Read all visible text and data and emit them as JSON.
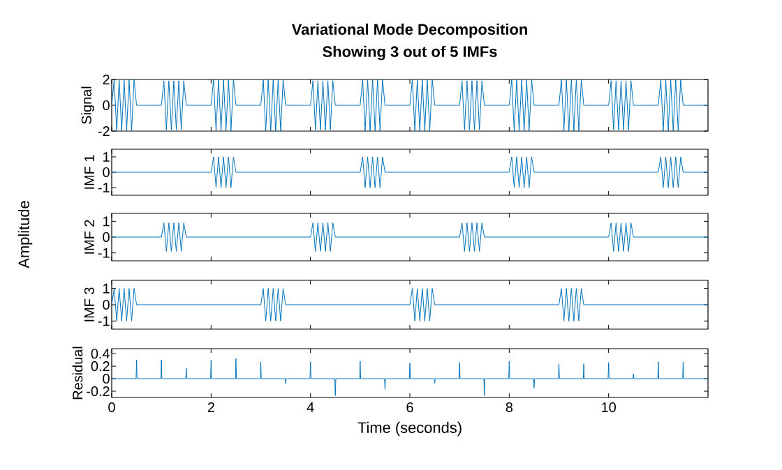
{
  "chart_data": [
    {
      "type": "line",
      "title": "Variational Mode Decomposition",
      "subtitle": "Showing 3 out of 5 IMFs",
      "ylabel": "Signal",
      "xlim": [
        0,
        12
      ],
      "xticks": [
        0,
        2,
        4,
        6,
        8,
        10
      ],
      "ylim": [
        -2,
        2
      ],
      "yticks": [
        -2,
        0,
        2
      ],
      "tick_labels": "y",
      "series": [
        {
          "color": "#0072bd",
          "x": [
            0,
            0.05,
            0.1,
            0.15,
            0.2,
            0.25,
            0.3,
            0.35,
            0.4,
            0.45,
            0.5,
            1,
            1.05,
            1.1,
            1.15,
            1.2,
            1.25,
            1.3,
            1.35,
            1.4,
            1.45,
            1.5,
            2,
            2.05,
            2.1,
            2.15,
            2.2,
            2.25,
            2.3,
            2.35,
            2.4,
            2.45,
            2.5,
            3,
            3.05,
            3.1,
            3.15,
            3.2,
            3.25,
            3.3,
            3.35,
            3.4,
            3.45,
            3.5,
            4,
            4.05,
            4.1,
            4.15,
            4.2,
            4.25,
            4.3,
            4.35,
            4.4,
            4.45,
            4.5,
            5,
            5.05,
            5.1,
            5.15,
            5.2,
            5.25,
            5.3,
            5.35,
            5.4,
            5.45,
            5.5,
            6,
            6.05,
            6.1,
            6.15,
            6.2,
            6.25,
            6.3,
            6.35,
            6.4,
            6.45,
            6.5,
            7,
            7.05,
            7.1,
            7.15,
            7.2,
            7.25,
            7.3,
            7.35,
            7.4,
            7.45,
            7.5,
            8,
            8.05,
            8.1,
            8.15,
            8.2,
            8.25,
            8.3,
            8.35,
            8.4,
            8.45,
            8.5,
            9,
            9.05,
            9.1,
            9.15,
            9.2,
            9.25,
            9.3,
            9.35,
            9.4,
            9.45,
            9.5,
            10,
            10.05,
            10.1,
            10.15,
            10.2,
            10.25,
            10.3,
            10.35,
            10.4,
            10.45,
            10.5,
            11,
            11.05,
            11.1,
            11.15,
            11.2,
            11.25,
            11.3,
            11.35,
            11.4,
            11.45,
            11.5,
            12
          ],
          "values": [
            0,
            2,
            -2,
            2,
            -2,
            2,
            -2,
            2,
            -2,
            2,
            0,
            0,
            1.9,
            -1.9,
            1.9,
            -1.9,
            1.9,
            -1.9,
            1.9,
            -1.9,
            1.9,
            0,
            0,
            2,
            -2,
            2,
            -2,
            2,
            -2,
            2,
            -2,
            2,
            0,
            0,
            2,
            -2,
            2,
            -2,
            2,
            -2,
            2,
            -2,
            2,
            0,
            0,
            1.9,
            -1.9,
            1.9,
            -1.9,
            1.9,
            -1.9,
            1.9,
            -1.9,
            1.9,
            0,
            0,
            2,
            -2,
            2,
            -2,
            2,
            -2,
            2,
            -2,
            2,
            0,
            0,
            2,
            -2,
            2,
            -2,
            2,
            -2,
            2,
            -2,
            2,
            0,
            0,
            1.9,
            -1.9,
            1.9,
            -1.9,
            1.9,
            -1.9,
            1.9,
            -1.9,
            1.9,
            0,
            0,
            2,
            -2,
            2,
            -2,
            2,
            -2,
            2,
            -2,
            2,
            0,
            0,
            2,
            -2,
            2,
            -2,
            2,
            -2,
            2,
            -2,
            2,
            0,
            0,
            1.9,
            -1.9,
            1.9,
            -1.9,
            1.9,
            -1.9,
            1.9,
            -1.9,
            1.9,
            0,
            0,
            2,
            -2,
            2,
            -2,
            2,
            -2,
            2,
            -2,
            2,
            0,
            0
          ]
        }
      ]
    },
    {
      "type": "line",
      "ylabel": "IMF 1",
      "xlim": [
        0,
        12
      ],
      "xticks": [
        0,
        2,
        4,
        6,
        8,
        10
      ],
      "ylim": [
        -1.5,
        1.5
      ],
      "yticks": [
        -1,
        0,
        1
      ],
      "tick_labels": "y",
      "series": [
        {
          "color": "#0072bd",
          "x": [
            0,
            2,
            2.05,
            2.1,
            2.15,
            2.2,
            2.25,
            2.3,
            2.35,
            2.4,
            2.45,
            2.5,
            5,
            5.05,
            5.1,
            5.15,
            5.2,
            5.25,
            5.3,
            5.35,
            5.4,
            5.45,
            5.5,
            8,
            8.05,
            8.1,
            8.15,
            8.2,
            8.25,
            8.3,
            8.35,
            8.4,
            8.45,
            8.5,
            11,
            11.05,
            11.1,
            11.15,
            11.2,
            11.25,
            11.3,
            11.35,
            11.4,
            11.45,
            11.5,
            12
          ],
          "values": [
            0,
            0,
            1,
            -1,
            1,
            -1,
            1,
            -1,
            1,
            -1,
            1,
            0,
            0,
            1,
            -1,
            1,
            -1,
            1,
            -1,
            1,
            -1,
            1,
            0,
            0,
            1,
            -1,
            1,
            -1,
            1,
            -1,
            1,
            -1,
            1,
            0,
            0,
            1,
            -1,
            1,
            -1,
            1,
            -1,
            1,
            -1,
            1,
            0,
            0
          ]
        }
      ]
    },
    {
      "type": "line",
      "ylabel": "IMF 2",
      "xlim": [
        0,
        12
      ],
      "xticks": [
        0,
        2,
        4,
        6,
        8,
        10
      ],
      "ylim": [
        -1.5,
        1.5
      ],
      "yticks": [
        -1,
        0,
        1
      ],
      "tick_labels": "y",
      "annotations": [
        "Amplitude"
      ],
      "series": [
        {
          "color": "#0072bd",
          "x": [
            0,
            1,
            1.05,
            1.1,
            1.15,
            1.2,
            1.25,
            1.3,
            1.35,
            1.4,
            1.45,
            1.5,
            4,
            4.05,
            4.1,
            4.15,
            4.2,
            4.25,
            4.3,
            4.35,
            4.4,
            4.45,
            4.5,
            7,
            7.05,
            7.1,
            7.15,
            7.2,
            7.25,
            7.3,
            7.35,
            7.4,
            7.45,
            7.5,
            10,
            10.05,
            10.1,
            10.15,
            10.2,
            10.25,
            10.3,
            10.35,
            10.4,
            10.45,
            10.5,
            12
          ],
          "values": [
            0,
            0,
            0.9,
            -0.9,
            0.9,
            -0.9,
            0.9,
            -0.9,
            0.9,
            -0.9,
            0.9,
            0,
            0,
            0.9,
            -0.9,
            0.9,
            -0.9,
            0.9,
            -0.9,
            0.9,
            -0.9,
            0.9,
            0,
            0,
            0.9,
            -0.9,
            0.9,
            -0.9,
            0.9,
            -0.9,
            0.9,
            -0.9,
            0.9,
            0,
            0,
            0.9,
            -0.9,
            0.9,
            -0.9,
            0.9,
            -0.9,
            0.9,
            -0.9,
            0.9,
            0,
            0
          ]
        }
      ]
    },
    {
      "type": "line",
      "ylabel": "IMF 3",
      "xlim": [
        0,
        12
      ],
      "xticks": [
        0,
        2,
        4,
        6,
        8,
        10
      ],
      "ylim": [
        -1.5,
        1.5
      ],
      "yticks": [
        -1,
        0,
        1
      ],
      "tick_labels": "y",
      "series": [
        {
          "color": "#0072bd",
          "x": [
            0,
            0.05,
            0.1,
            0.15,
            0.2,
            0.25,
            0.3,
            0.35,
            0.4,
            0.45,
            0.5,
            3,
            3.05,
            3.1,
            3.15,
            3.2,
            3.25,
            3.3,
            3.35,
            3.4,
            3.45,
            3.5,
            6,
            6.05,
            6.1,
            6.15,
            6.2,
            6.25,
            6.3,
            6.35,
            6.4,
            6.45,
            6.5,
            9,
            9.05,
            9.1,
            9.15,
            9.2,
            9.25,
            9.3,
            9.35,
            9.4,
            9.45,
            9.5,
            12
          ],
          "values": [
            0,
            1,
            -1,
            1,
            -1,
            1,
            -1,
            1,
            -1,
            1,
            0,
            0,
            1,
            -1,
            1,
            -1,
            1,
            -1,
            1,
            -1,
            1,
            0,
            0,
            1,
            -1,
            1,
            -1,
            1,
            -1,
            1,
            -1,
            1,
            0,
            0,
            1,
            -1,
            1,
            -1,
            1,
            -1,
            1,
            -1,
            1,
            0,
            0
          ]
        }
      ]
    },
    {
      "type": "line",
      "ylabel": "Residual",
      "xlabel": "Time (seconds)",
      "xlim": [
        0,
        12
      ],
      "xticks": [
        0,
        2,
        4,
        6,
        8,
        10
      ],
      "ylim": [
        -0.3,
        0.48
      ],
      "yticks": [
        -0.2,
        0,
        0.2,
        0.4
      ],
      "series": [
        {
          "color": "#0072bd",
          "x": [
            0,
            0.49,
            0.5,
            0.51,
            0.99,
            1,
            1.01,
            1.49,
            1.5,
            1.51,
            1.99,
            2,
            2.01,
            2.49,
            2.5,
            2.51,
            2.99,
            3,
            3.01,
            3.49,
            3.5,
            3.51,
            3.99,
            4,
            4.01,
            4.49,
            4.5,
            4.51,
            4.99,
            5,
            5.01,
            5.49,
            5.5,
            5.51,
            5.99,
            6,
            6.01,
            6.49,
            6.5,
            6.51,
            6.99,
            7,
            7.01,
            7.49,
            7.5,
            7.51,
            7.99,
            8,
            8.01,
            8.49,
            8.5,
            8.51,
            8.99,
            9,
            9.01,
            9.49,
            9.5,
            9.51,
            9.99,
            10,
            10.01,
            10.49,
            10.5,
            10.51,
            10.99,
            11,
            11.01,
            11.49,
            11.5,
            11.51,
            12
          ],
          "values": [
            0,
            0,
            0.3,
            0,
            0,
            0.3,
            0,
            0,
            0.17,
            0,
            0,
            0.3,
            0,
            0,
            0.32,
            0,
            0,
            0.27,
            0,
            0,
            -0.08,
            0,
            0,
            0.27,
            0,
            0,
            -0.27,
            0,
            0,
            0.28,
            0,
            0,
            -0.17,
            0,
            0,
            0.25,
            0,
            0,
            -0.07,
            0,
            0,
            0.26,
            0,
            0,
            -0.27,
            0,
            0,
            0.28,
            0,
            0,
            -0.15,
            0,
            0,
            0.24,
            0,
            0,
            0.24,
            0,
            0,
            0.26,
            0,
            0,
            0.08,
            0,
            0,
            0.27,
            0,
            0,
            0.27,
            0,
            0
          ]
        }
      ]
    }
  ]
}
